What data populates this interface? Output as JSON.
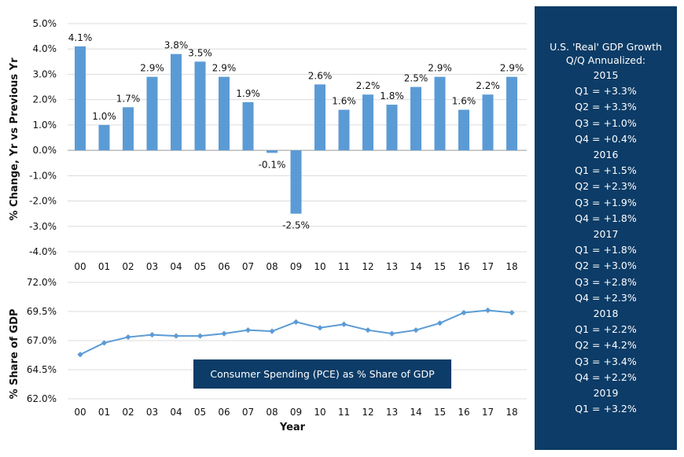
{
  "chart_data": [
    {
      "type": "bar",
      "title": "",
      "xlabel": "",
      "ylabel": "% Change, Yr vs Previous Yr",
      "categories": [
        "00",
        "01",
        "02",
        "03",
        "04",
        "05",
        "06",
        "07",
        "08",
        "09",
        "10",
        "11",
        "12",
        "13",
        "14",
        "15",
        "16",
        "17",
        "18"
      ],
      "values": [
        4.1,
        1.0,
        1.7,
        2.9,
        3.8,
        3.5,
        2.9,
        1.9,
        -0.1,
        -2.5,
        2.6,
        1.6,
        2.2,
        1.8,
        2.5,
        2.9,
        1.6,
        2.2,
        2.9
      ],
      "data_labels": [
        "4.1%",
        "1.0%",
        "1.7%",
        "2.9%",
        "3.8%",
        "3.5%",
        "2.9%",
        "1.9%",
        "-0.1%",
        "-2.5%",
        "2.6%",
        "1.6%",
        "2.2%",
        "1.8%",
        "2.5%",
        "2.9%",
        "1.6%",
        "2.2%",
        "2.9%"
      ],
      "ylim": [
        -4.0,
        5.0
      ],
      "yticks": [
        5.0,
        4.0,
        3.0,
        2.0,
        1.0,
        0.0,
        -1.0,
        -2.0,
        -3.0,
        -4.0
      ],
      "ytick_labels": [
        "5.0%",
        "4.0%",
        "3.0%",
        "2.0%",
        "1.0%",
        "0.0%",
        "-1.0%",
        "-2.0%",
        "-3.0%",
        "-4.0%"
      ],
      "grid": true,
      "color": "#5b9bd5"
    },
    {
      "type": "line",
      "title": "",
      "xlabel": "Year",
      "ylabel": "% Share of GDP",
      "annotation": "Consumer Spending (PCE) as % Share of GDP",
      "categories": [
        "00",
        "01",
        "02",
        "03",
        "04",
        "05",
        "06",
        "07",
        "08",
        "09",
        "10",
        "11",
        "12",
        "13",
        "14",
        "15",
        "16",
        "17",
        "18"
      ],
      "values": [
        65.8,
        66.8,
        67.3,
        67.5,
        67.4,
        67.4,
        67.6,
        67.9,
        67.8,
        68.6,
        68.1,
        68.4,
        67.9,
        67.6,
        67.9,
        68.5,
        69.4,
        69.6,
        69.4
      ],
      "ylim": [
        62.0,
        72.0
      ],
      "yticks": [
        72.0,
        69.5,
        67.0,
        64.5,
        62.0
      ],
      "ytick_labels": [
        "72.0%",
        "69.5%",
        "67.0%",
        "64.5%",
        "62.0%"
      ],
      "grid": true,
      "color": "#5b9bd5"
    }
  ],
  "info_panel": {
    "title_line1": "U.S. 'Real' GDP Growth",
    "title_line2": "Q/Q Annualized:",
    "lines": [
      "2015",
      "Q1 = +3.3%",
      "Q2 = +3.3%",
      "Q3 = +1.0%",
      "Q4 = +0.4%",
      "2016",
      "Q1 = +1.5%",
      "Q2 = +2.3%",
      "Q3 = +1.9%",
      "Q4 = +1.8%",
      "2017",
      "Q1 = +1.8%",
      "Q2 = +3.0%",
      "Q3 = +2.8%",
      "Q4 = +2.3%",
      "2018",
      "Q1 = +2.2%",
      "Q2 = +4.2%",
      "Q3 = +3.4%",
      "Q4 = +2.2%",
      "2019",
      "Q1 = +3.2%"
    ],
    "background": "#0c3c67"
  }
}
